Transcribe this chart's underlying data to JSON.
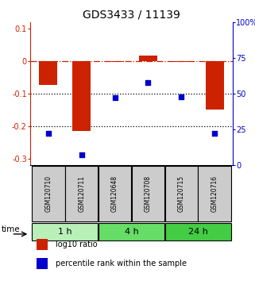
{
  "title": "GDS3433 / 11139",
  "samples": [
    "GSM120710",
    "GSM120711",
    "GSM120648",
    "GSM120708",
    "GSM120715",
    "GSM120716"
  ],
  "log10_ratio": [
    -0.072,
    -0.215,
    -0.002,
    0.018,
    -0.003,
    -0.15
  ],
  "percentile_rank": [
    22,
    7,
    47,
    58,
    48,
    22
  ],
  "groups": [
    {
      "label": "1 h",
      "indices": [
        0,
        1
      ],
      "color": "#b8f0b8"
    },
    {
      "label": "4 h",
      "indices": [
        2,
        3
      ],
      "color": "#66dd66"
    },
    {
      "label": "24 h",
      "indices": [
        4,
        5
      ],
      "color": "#44cc44"
    }
  ],
  "bar_color": "#cc2200",
  "dot_color": "#0000cc",
  "bar_width": 0.55,
  "ylim_left": [
    -0.32,
    0.12
  ],
  "ylim_right": [
    0,
    100
  ],
  "yticks_left": [
    0.1,
    0.0,
    -0.1,
    -0.2,
    -0.3
  ],
  "yticks_right": [
    100,
    75,
    50,
    25,
    0
  ],
  "hline_defs": [
    {
      "y": 0.0,
      "style": "dashdot",
      "color": "#cc2200",
      "lw": 0.9
    },
    {
      "y": -0.1,
      "style": "dotted",
      "color": "#000000",
      "lw": 0.9
    },
    {
      "y": -0.2,
      "style": "dotted",
      "color": "#000000",
      "lw": 0.9
    }
  ],
  "legend_items": [
    {
      "label": "log10 ratio",
      "color": "#cc2200"
    },
    {
      "label": "percentile rank within the sample",
      "color": "#0000cc"
    }
  ],
  "time_label": "time",
  "background_color": "#ffffff",
  "sample_box_color": "#cccccc",
  "title_fontsize": 10,
  "tick_fontsize": 7,
  "sample_fontsize": 5.5,
  "group_fontsize": 8,
  "legend_fontsize": 7
}
